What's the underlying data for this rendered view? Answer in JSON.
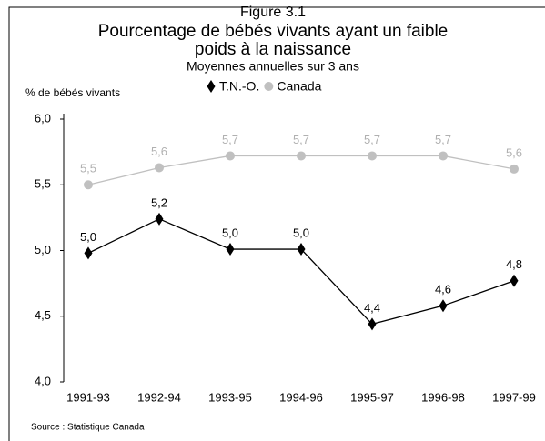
{
  "chart_data": {
    "type": "line",
    "figure": "Figure 3.1",
    "title": [
      "Pourcentage de bébés vivants ayant un faible",
      "poids à la naissance"
    ],
    "subtitle": "Moyennes annuelles sur 3 ans",
    "y_label": "% de bébés vivants",
    "source": "Source : Statistique Canada",
    "categories": [
      "1991-93",
      "1992-94",
      "1993-95",
      "1994-96",
      "1995-97",
      "1996-98",
      "1997-99"
    ],
    "series": [
      {
        "name": "T.N.-O.",
        "color": "#000000",
        "marker": "diamond",
        "values": [
          4.98,
          5.24,
          5.01,
          5.01,
          4.44,
          4.58,
          4.77
        ],
        "value_labels": [
          "5,0",
          "5,2",
          "5,0",
          "5,0",
          "4,4",
          "4,6",
          "4,8"
        ]
      },
      {
        "name": "Canada",
        "color": "#c0c0c0",
        "marker": "circle",
        "values": [
          5.5,
          5.63,
          5.72,
          5.72,
          5.72,
          5.72,
          5.62
        ],
        "value_labels": [
          "5,5",
          "5,6",
          "5,7",
          "5,7",
          "5,7",
          "5,7",
          "5,6"
        ]
      }
    ],
    "ylim": [
      4,
      6
    ],
    "yticks": [
      {
        "value": 4,
        "label": "4,0"
      },
      {
        "value": 4.5,
        "label": "4,5"
      },
      {
        "value": 5,
        "label": "5,0"
      },
      {
        "value": 5.5,
        "label": "5,5"
      },
      {
        "value": 6,
        "label": "6,0"
      }
    ],
    "grid": false
  }
}
